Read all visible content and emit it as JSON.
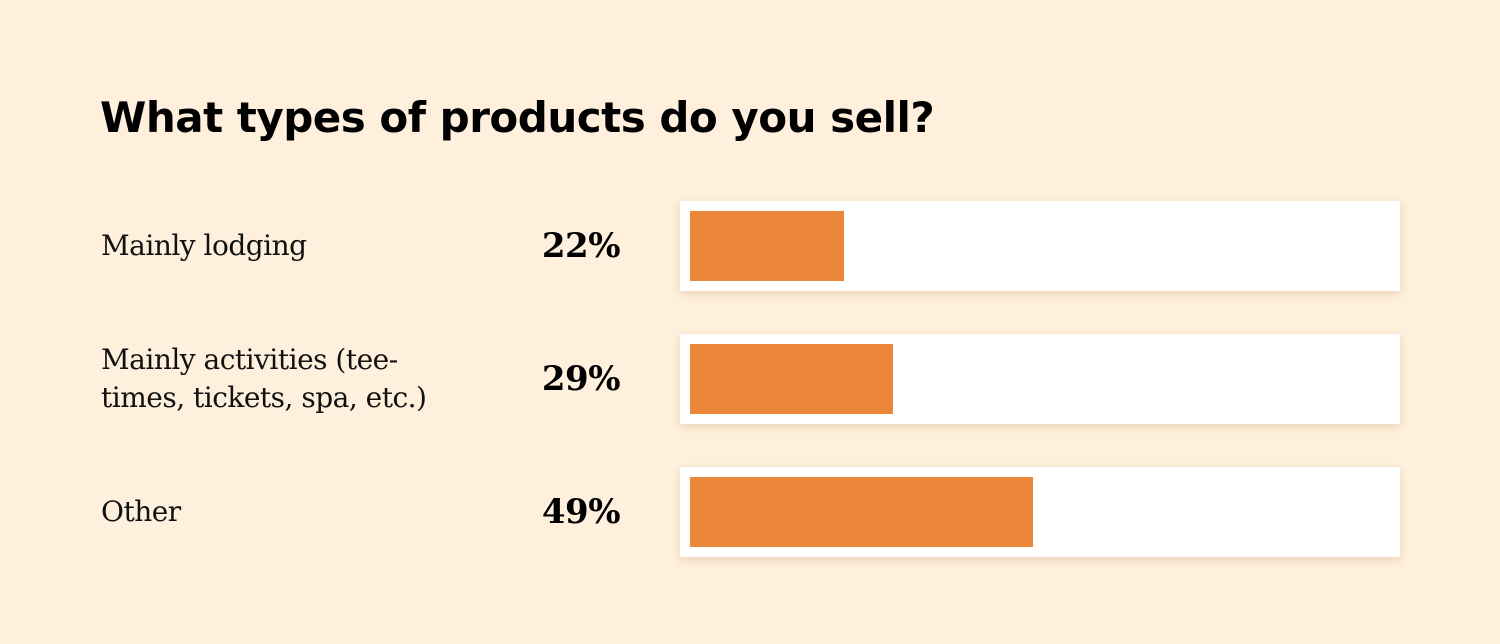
{
  "colors": {
    "background": "#FEF0DC",
    "track": "#FFFFFF",
    "bar": "#EC8638"
  },
  "chart_data": {
    "type": "bar",
    "orientation": "horizontal",
    "title": "What types of products do you sell?",
    "categories": [
      "Mainly lodging",
      "Mainly activities (tee-times, tickets, spa, etc.)",
      "Other"
    ],
    "values": [
      22,
      29,
      49
    ],
    "value_labels": [
      "22%",
      "29%",
      "49%"
    ],
    "xlim": [
      0,
      100
    ],
    "grid": false,
    "legend": "none"
  },
  "rows": [
    {
      "label": "Mainly lodging",
      "value_text": "22%",
      "value": 22
    },
    {
      "label": "Mainly activities (tee-times, tickets, spa, etc.)",
      "value_text": "29%",
      "value": 29
    },
    {
      "label": "Other",
      "value_text": "49%",
      "value": 49
    }
  ]
}
